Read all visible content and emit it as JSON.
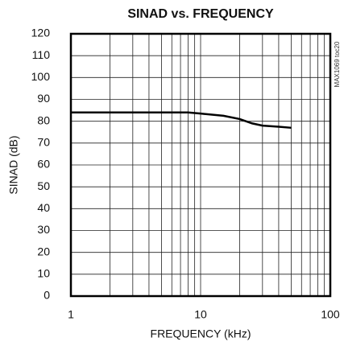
{
  "chart_data": {
    "type": "line",
    "title": "SINAD vs. FREQUENCY",
    "annotation": "MAX1069 toc20",
    "x_label": "FREQUENCY (kHz)",
    "y_label": "SINAD (dB)",
    "log_x": true,
    "grid": true,
    "x": [
      1,
      2,
      5,
      8,
      10,
      15,
      20,
      25,
      30,
      40,
      50
    ],
    "series": [
      {
        "name": "SINAD",
        "color": "#000000",
        "values": [
          84,
          84,
          84,
          84,
          83.5,
          82.5,
          81,
          79,
          78,
          77.5,
          77
        ]
      }
    ],
    "xlim": [
      1,
      100
    ],
    "xticks": [
      1,
      10,
      100
    ],
    "xminorticks": [
      2,
      3,
      4,
      5,
      6,
      7,
      8,
      9,
      20,
      30,
      40,
      50,
      60,
      70,
      80,
      90
    ],
    "ylim": [
      0,
      120
    ],
    "yticks": [
      0,
      10,
      20,
      30,
      40,
      50,
      60,
      70,
      80,
      90,
      100,
      110,
      120
    ]
  }
}
